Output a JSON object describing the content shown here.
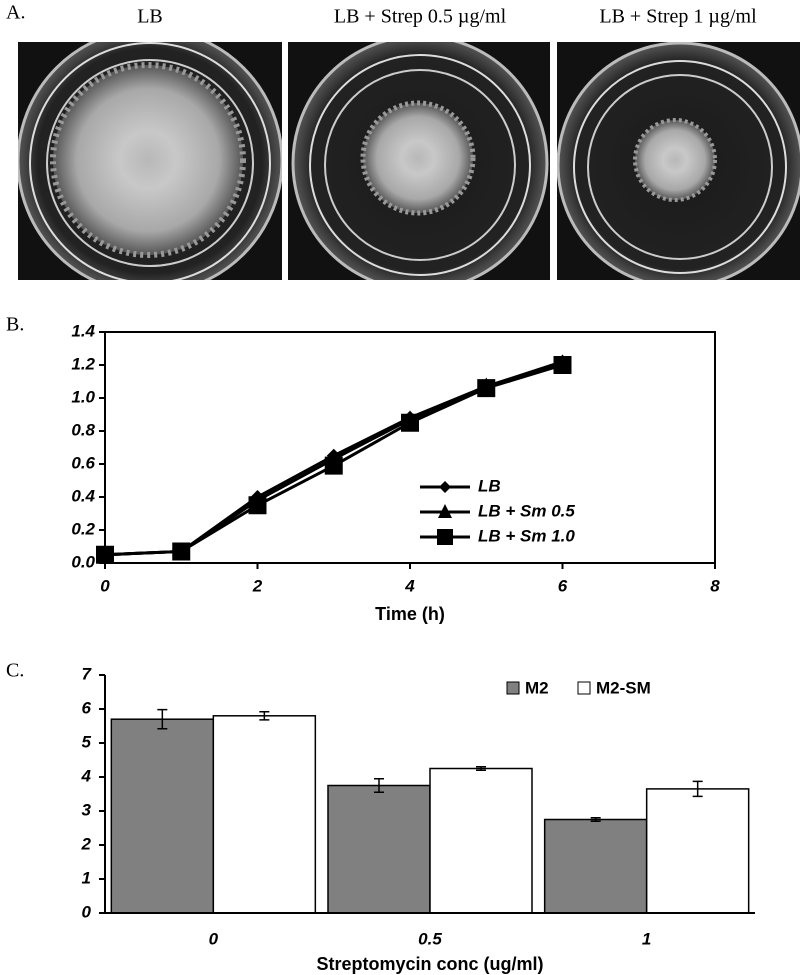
{
  "panel_a": {
    "label": "A.",
    "titles": [
      "LB",
      "LB + Strep 0.5 µg/ml",
      "LB + Strep 1 µg/ml"
    ]
  },
  "chart_data": [
    {
      "type": "line",
      "panel_label": "B.",
      "x_label": "Time (h)",
      "x": [
        0,
        1,
        2,
        3,
        4,
        5,
        6
      ],
      "series": [
        {
          "name": "LB",
          "color": "#000000",
          "marker": "diamond",
          "values": [
            0.05,
            0.07,
            0.4,
            0.65,
            0.88,
            1.07,
            1.22
          ]
        },
        {
          "name": "LB + Sm 0.5",
          "color": "#000000",
          "marker": "triangle",
          "values": [
            0.05,
            0.07,
            0.38,
            0.63,
            0.87,
            1.07,
            1.21
          ]
        },
        {
          "name": "LB + Sm 1.0",
          "color": "#000000",
          "marker": "square",
          "values": [
            0.05,
            0.07,
            0.35,
            0.59,
            0.85,
            1.06,
            1.2
          ]
        }
      ],
      "xlim": [
        0,
        8
      ],
      "xticks": [
        0,
        2,
        4,
        6,
        8
      ],
      "ylim": [
        0,
        1.4
      ],
      "yticks": [
        {
          "value": 0,
          "label": "0.0"
        },
        0.2,
        0.4,
        0.6,
        0.8,
        {
          "value": 1,
          "label": "1.0"
        },
        1.2,
        1.4
      ]
    },
    {
      "type": "bar",
      "panel_label": "C.",
      "x_label": "Streptomycin conc (ug/ml)",
      "categories": [
        "0",
        "0.5",
        "1"
      ],
      "series": [
        {
          "name": "M2",
          "color": "#808080",
          "values": [
            5.7,
            3.75,
            2.75
          ],
          "errors": [
            0.28,
            0.2,
            0.05
          ]
        },
        {
          "name": "M2-SM",
          "color": "#ffffff",
          "values": [
            5.8,
            4.25,
            3.65
          ],
          "errors": [
            0.12,
            0.05,
            0.22
          ]
        }
      ],
      "ylim": [
        0,
        7
      ],
      "yticks": [
        0,
        1,
        2,
        3,
        4,
        5,
        6,
        7
      ]
    }
  ]
}
